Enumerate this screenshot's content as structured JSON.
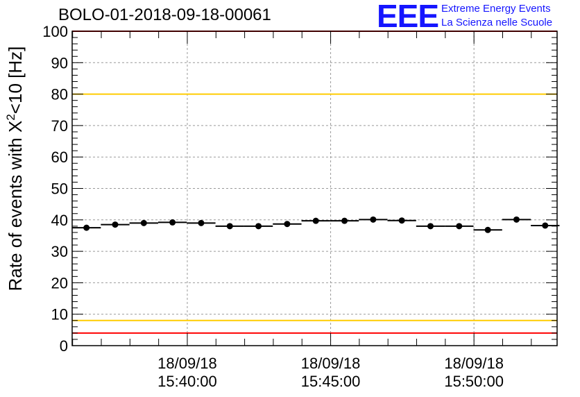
{
  "title": "BOLO-01-2018-09-18-00061",
  "logo": {
    "mark": "EEE",
    "line1": "Extreme Energy Events",
    "line2": "La Scienza nelle Scuole"
  },
  "chart_data": {
    "type": "scatter",
    "title": "BOLO-01-2018-09-18-00061",
    "ylabel_prefix": "Rate of events with X",
    "ylabel_sup": "2",
    "ylabel_suffix": "<10 [Hz]",
    "ylim": [
      0,
      100
    ],
    "y_ticks": [
      "0",
      "10",
      "20",
      "30",
      "40",
      "50",
      "60",
      "70",
      "80",
      "90",
      "100"
    ],
    "xlim": [
      "15:35:59",
      "15:52:54"
    ],
    "x_ticks": [
      {
        "date": "18/09/18",
        "time": "15:40:00"
      },
      {
        "date": "18/09/18",
        "time": "15:45:00"
      },
      {
        "date": "18/09/18",
        "time": "15:50:00"
      }
    ],
    "grid": true,
    "series": [
      {
        "bin_width_s": 60,
        "x": [
          "15:36:29",
          "15:37:29",
          "15:38:29",
          "15:39:29",
          "15:40:29",
          "15:41:29",
          "15:42:29",
          "15:43:29",
          "15:44:29",
          "15:45:29",
          "15:46:29",
          "15:47:29",
          "15:48:29",
          "15:49:29",
          "15:50:29",
          "15:51:29",
          "15:52:29"
        ],
        "values": [
          37.5,
          38.5,
          39.0,
          39.2,
          39.0,
          38.0,
          38.0,
          38.7,
          39.7,
          39.7,
          40.1,
          39.8,
          38.0,
          38.0,
          36.8,
          40.1,
          38.2
        ]
      }
    ],
    "reference_lines": [
      {
        "y": 100,
        "color": "#ff0000"
      },
      {
        "y": 80,
        "color": "#ffcc00"
      },
      {
        "y": 8,
        "color": "#ffcc00"
      },
      {
        "y": 4,
        "color": "#ff0000"
      }
    ]
  }
}
